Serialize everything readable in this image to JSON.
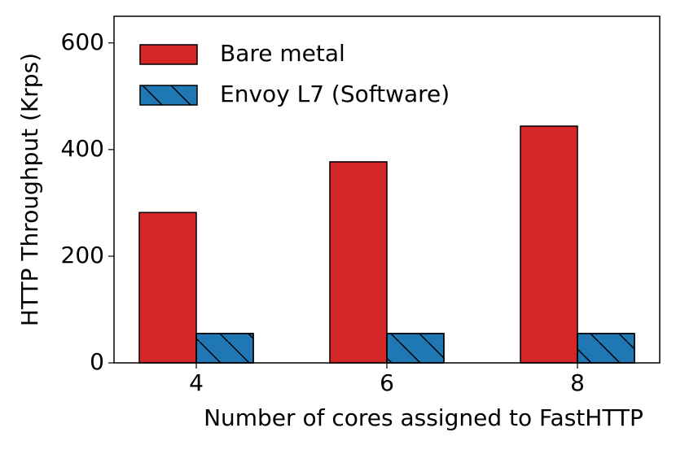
{
  "chart_data": {
    "type": "bar",
    "categories": [
      "4",
      "6",
      "8"
    ],
    "x_label": "Number of cores assigned to FastHTTP",
    "y_label": "HTTP Throughput (Krps)",
    "series": [
      {
        "name": "Bare metal",
        "color": "#d62728",
        "values": [
          282,
          377,
          444
        ]
      },
      {
        "name": "Envoy L7 (Software)",
        "color": "#1f77b4",
        "hatch": "\\",
        "values": [
          55,
          55,
          55
        ]
      }
    ],
    "ylim": [
      0,
      650
    ],
    "yticks": [
      0,
      200,
      400,
      600
    ],
    "legend": "upper left"
  }
}
